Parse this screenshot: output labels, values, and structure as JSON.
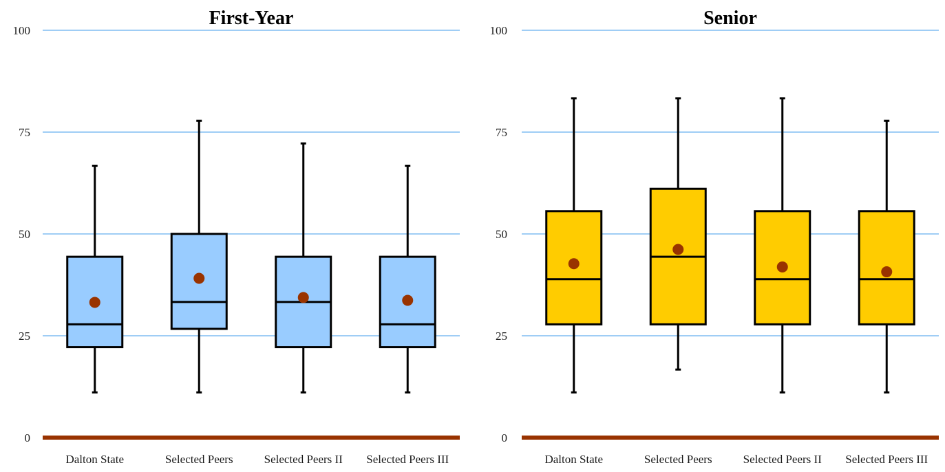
{
  "chart_data": [
    {
      "type": "box",
      "title": "First-Year",
      "categories": [
        "Dalton State",
        "Selected Peers",
        "Selected Peers II",
        "Selected Peers III"
      ],
      "ylim": [
        0,
        100
      ],
      "yticks": [
        0,
        25,
        50,
        75,
        100
      ],
      "grid": true,
      "box_color": "#99ccff",
      "mean_color": "#993300",
      "boxes": [
        {
          "whisker_low": 11.1,
          "q1": 22.2,
          "median": 27.8,
          "q3": 44.4,
          "whisker_high": 66.7,
          "mean": 33.2
        },
        {
          "whisker_low": 11.1,
          "q1": 26.7,
          "median": 33.3,
          "q3": 50.0,
          "whisker_high": 77.8,
          "mean": 39.1
        },
        {
          "whisker_low": 11.1,
          "q1": 22.2,
          "median": 33.3,
          "q3": 44.4,
          "whisker_high": 72.2,
          "mean": 34.4
        },
        {
          "whisker_low": 11.1,
          "q1": 22.2,
          "median": 27.8,
          "q3": 44.4,
          "whisker_high": 66.7,
          "mean": 33.7
        }
      ]
    },
    {
      "type": "box",
      "title": "Senior",
      "categories": [
        "Dalton State",
        "Selected Peers",
        "Selected Peers II",
        "Selected Peers III"
      ],
      "ylim": [
        0,
        100
      ],
      "yticks": [
        0,
        25,
        50,
        75,
        100
      ],
      "grid": true,
      "box_color": "#ffcc00",
      "mean_color": "#993300",
      "boxes": [
        {
          "whisker_low": 11.1,
          "q1": 27.8,
          "median": 38.9,
          "q3": 55.6,
          "whisker_high": 83.3,
          "mean": 42.7
        },
        {
          "whisker_low": 16.7,
          "q1": 27.8,
          "median": 44.4,
          "q3": 61.1,
          "whisker_high": 83.3,
          "mean": 46.2
        },
        {
          "whisker_low": 11.1,
          "q1": 27.8,
          "median": 38.9,
          "q3": 55.6,
          "whisker_high": 83.3,
          "mean": 41.9
        },
        {
          "whisker_low": 11.1,
          "q1": 27.8,
          "median": 38.9,
          "q3": 55.6,
          "whisker_high": 77.8,
          "mean": 40.7
        }
      ]
    }
  ]
}
